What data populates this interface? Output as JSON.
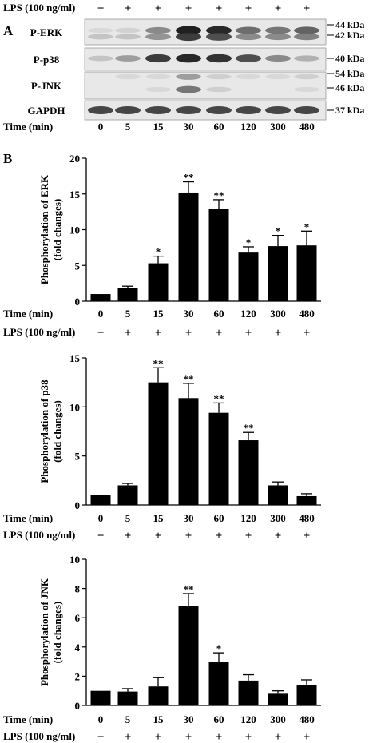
{
  "panel_a": {
    "label": "A",
    "lps_label": "LPS (100 ng/ml)",
    "lps_marks": [
      "−",
      "+",
      "+",
      "+",
      "+",
      "+",
      "+",
      "+"
    ],
    "time_label": "Time (min)",
    "times": [
      "0",
      "5",
      "15",
      "30",
      "60",
      "120",
      "300",
      "480"
    ],
    "blots": [
      {
        "label": "P-ERK",
        "markers": [
          "44 kDa",
          "42 kDa"
        ],
        "bands": 2,
        "intensity": [
          [
            0.05,
            0.08,
            0.45,
            1.0,
            0.95,
            0.6,
            0.55,
            0.65
          ],
          [
            0.15,
            0.15,
            0.4,
            0.85,
            0.75,
            0.45,
            0.45,
            0.5
          ]
        ]
      },
      {
        "label": "P-p38",
        "markers": [
          "40 kDa"
        ],
        "bands": 1,
        "intensity": [
          [
            0.15,
            0.35,
            0.85,
            0.95,
            0.9,
            0.75,
            0.45,
            0.25
          ]
        ]
      },
      {
        "label": "P-JNK",
        "markers": [
          "54 kDa",
          "46 kDa"
        ],
        "bands": 2,
        "intensity": [
          [
            0.0,
            0.05,
            0.05,
            0.35,
            0.1,
            0.05,
            0.05,
            0.1
          ],
          [
            0.0,
            0.0,
            0.05,
            0.55,
            0.1,
            0.0,
            0.0,
            0.05
          ]
        ]
      },
      {
        "label": "GAPDH",
        "markers": [
          "37 kDa"
        ],
        "bands": 1,
        "intensity": [
          [
            0.8,
            0.8,
            0.8,
            0.8,
            0.8,
            0.8,
            0.8,
            0.8
          ]
        ]
      }
    ]
  },
  "panel_b": {
    "label": "B"
  },
  "chart_data": [
    {
      "type": "bar",
      "categories": [
        "0",
        "5",
        "15",
        "30",
        "60",
        "120",
        "300",
        "480"
      ],
      "values": [
        1.0,
        1.8,
        5.3,
        15.2,
        12.9,
        6.8,
        7.7,
        7.8
      ],
      "errors": [
        0.0,
        0.3,
        1.0,
        1.5,
        1.3,
        0.8,
        1.5,
        2.0
      ],
      "significance": [
        "",
        "",
        "*",
        "**",
        "**",
        "*",
        "*",
        "*"
      ],
      "ylabel": [
        "Phosphorylation of ERK",
        "(fold changes)"
      ],
      "ylim": [
        0,
        20
      ],
      "yticks": [
        0,
        5,
        10,
        15,
        20
      ],
      "xlabel": "Time (min)",
      "lps_label": "LPS (100 ng/ml)",
      "lps_marks": [
        "−",
        "+",
        "+",
        "+",
        "+",
        "+",
        "+",
        "+"
      ],
      "grid": false
    },
    {
      "type": "bar",
      "categories": [
        "0",
        "5",
        "15",
        "30",
        "60",
        "120",
        "300",
        "480"
      ],
      "values": [
        1.0,
        2.0,
        12.5,
        10.9,
        9.4,
        6.6,
        2.0,
        0.9
      ],
      "errors": [
        0.0,
        0.2,
        1.5,
        1.5,
        1.0,
        0.8,
        0.35,
        0.25
      ],
      "significance": [
        "",
        "",
        "**",
        "**",
        "**",
        "**",
        "",
        ""
      ],
      "ylabel": [
        "Phosphorylation of p38",
        "(fold changes)"
      ],
      "ylim": [
        0,
        15
      ],
      "yticks": [
        0,
        5,
        10,
        15
      ],
      "xlabel": "Time (min)",
      "lps_label": "LPS (100 ng/ml)",
      "lps_marks": [
        "−",
        "+",
        "+",
        "+",
        "+",
        "+",
        "+",
        "+"
      ],
      "grid": false
    },
    {
      "type": "bar",
      "categories": [
        "0",
        "5",
        "15",
        "30",
        "60",
        "120",
        "300",
        "480"
      ],
      "values": [
        1.0,
        0.95,
        1.3,
        6.8,
        2.95,
        1.7,
        0.8,
        1.4
      ],
      "errors": [
        0.0,
        0.2,
        0.6,
        0.85,
        0.65,
        0.4,
        0.2,
        0.35
      ],
      "significance": [
        "",
        "",
        "",
        "**",
        "*",
        "",
        "",
        ""
      ],
      "ylabel": [
        "Phosphorylation of JNK",
        "(fold changes)"
      ],
      "ylim": [
        0,
        10
      ],
      "yticks": [
        0,
        2,
        4,
        6,
        8,
        10
      ],
      "xlabel": "Time (min)",
      "lps_label": "LPS (100 ng/ml)",
      "lps_marks": [
        "−",
        "+",
        "+",
        "+",
        "+",
        "+",
        "+",
        "+"
      ],
      "grid": false
    }
  ]
}
